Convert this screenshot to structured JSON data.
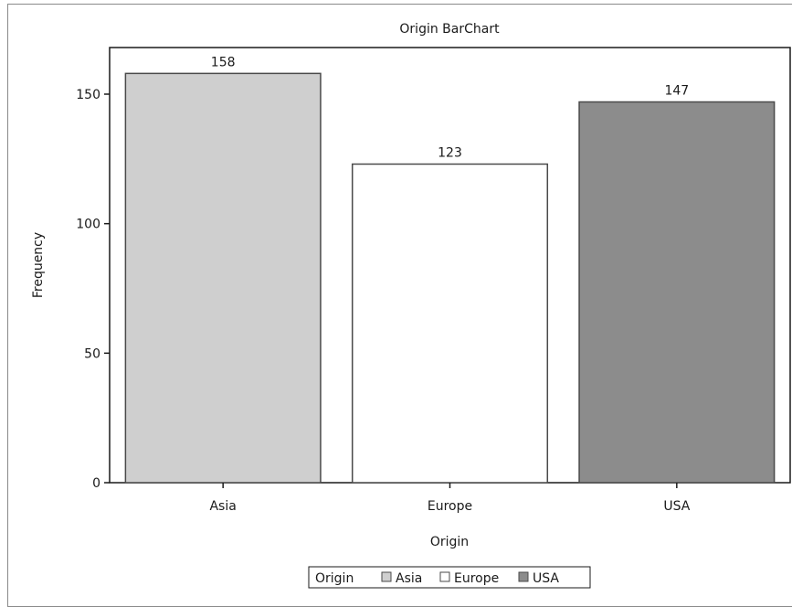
{
  "chart_data": {
    "type": "bar",
    "title": "Origin BarChart",
    "xlabel": "Origin",
    "ylabel": "Frequency",
    "categories": [
      "Asia",
      "Europe",
      "USA"
    ],
    "values": [
      158,
      123,
      147
    ],
    "ylim": [
      0,
      168
    ],
    "yticks": [
      0,
      50,
      100,
      150
    ],
    "data_labels": [
      "158",
      "123",
      "147"
    ],
    "colors": [
      "#cfcfcf",
      "#ffffff",
      "#8c8c8c"
    ],
    "bar_outline": "#4a4a4a",
    "grid": false,
    "legend": {
      "title": "Origin",
      "placement": "bottom-center",
      "items": [
        {
          "label": "Asia",
          "color": "#cfcfcf"
        },
        {
          "label": "Europe",
          "color": "#ffffff"
        },
        {
          "label": "USA",
          "color": "#8c8c8c"
        }
      ]
    }
  }
}
